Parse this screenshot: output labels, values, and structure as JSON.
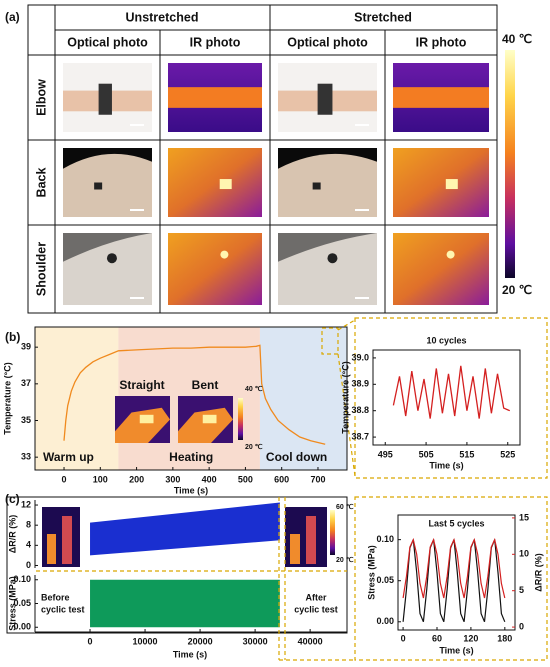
{
  "panel_labels": [
    "(a)",
    "(b)",
    "(c)"
  ],
  "panel_a": {
    "groups": [
      "Unstretched",
      "Stretched"
    ],
    "columns": [
      "Optical photo",
      "IR photo",
      "Optical photo",
      "IR photo"
    ],
    "rows": [
      "Elbow",
      "Back",
      "Shoulder"
    ],
    "colorbar": {
      "max_label": "40 ℃",
      "min_label": "20 ℃"
    }
  },
  "chart_data": [
    {
      "type": "line",
      "ylabel": "Temperature (°C)",
      "xlabel": "Time (s)",
      "xlim": [
        -80,
        780
      ],
      "xticks": [
        0,
        100,
        200,
        300,
        400,
        500,
        600,
        700
      ],
      "ylim": [
        32.3,
        40.1
      ],
      "yticks": [
        33,
        35,
        37,
        39
      ],
      "regions": {
        "labels": [
          "Warm up",
          "Heating",
          "Cool down"
        ],
        "boundaries": [
          150,
          540
        ],
        "colors": [
          "#fdefd3",
          "#f8dccf",
          "#dbe6f3"
        ]
      },
      "inset_labels": [
        "Straight",
        "Bent"
      ],
      "colorbar": {
        "max_label": "40 ℃",
        "min_label": "20 ℃"
      },
      "color": "#f08a1e",
      "x": [
        0,
        5,
        10,
        20,
        30,
        45,
        60,
        80,
        100,
        125,
        150,
        200,
        250,
        300,
        350,
        400,
        450,
        500,
        530,
        540,
        545,
        555,
        570,
        590,
        620,
        650,
        680,
        720
      ],
      "values": [
        33.9,
        35.0,
        35.8,
        36.6,
        37.1,
        37.6,
        37.9,
        38.2,
        38.4,
        38.6,
        38.8,
        38.85,
        38.9,
        38.95,
        38.95,
        39.0,
        39.0,
        39.0,
        39.05,
        39.1,
        37.0,
        36.2,
        35.6,
        35.0,
        34.5,
        34.1,
        33.9,
        33.7
      ]
    },
    {
      "type": "line",
      "title": "10 cycles",
      "ylabel": "Temperature (°C)",
      "xlabel": "Time (s)",
      "xlim": [
        492,
        528
      ],
      "xticks": [
        495,
        505,
        515,
        525
      ],
      "ylim": [
        38.67,
        39.03
      ],
      "yticks": [
        38.7,
        38.8,
        38.9,
        {
          "value": 39,
          "label": "39.0"
        }
      ],
      "color": "#d42020",
      "x": [
        497,
        498.5,
        500,
        501.5,
        503,
        504.5,
        506,
        507.5,
        509,
        510.5,
        512,
        513.5,
        515,
        516.5,
        518,
        519.5,
        521,
        522.5,
        524,
        525.5
      ],
      "values": [
        38.82,
        38.93,
        38.78,
        38.95,
        38.8,
        38.92,
        38.77,
        38.96,
        38.79,
        38.94,
        38.78,
        38.97,
        38.8,
        38.93,
        38.77,
        38.96,
        38.79,
        38.94,
        38.81,
        38.8
      ]
    },
    {
      "type": "band",
      "xlabel": "Time (s)",
      "xlim": [
        -10000,
        46700
      ],
      "xticks": [
        0,
        10000,
        20000,
        30000,
        40000
      ],
      "top": {
        "ylabel": "ΔR/R (%)",
        "ylim": [
          -0.5,
          13
        ],
        "yticks": [
          0,
          4,
          8,
          12
        ],
        "color": "#1a2fd0",
        "x": [
          0,
          34500
        ],
        "low": [
          2,
          5
        ],
        "high": [
          8.5,
          12.5
        ]
      },
      "bottom": {
        "ylabel": "Stress (MPa)",
        "ylim": [
          -0.01,
          0.11
        ],
        "yticks": [
          {
            "value": 0,
            "label": "0.00"
          },
          {
            "value": 0.05,
            "label": "0.05"
          },
          {
            "value": 0.1,
            "label": "0.10"
          }
        ],
        "color": "#0e9a5a",
        "x": [
          0,
          34500
        ],
        "low": [
          0,
          0
        ],
        "high": [
          0.1,
          0.1
        ]
      },
      "before_text": [
        "Before",
        "cyclic test"
      ],
      "after_text": [
        "After",
        "cyclic test"
      ],
      "colorbar": {
        "max_label": "60 ℃",
        "min_label": "20 ℃"
      }
    },
    {
      "type": "dual_line",
      "title": "Last 5 cycles",
      "xlabel": "Time (s)",
      "xlim": [
        -9,
        198
      ],
      "xticks": [
        0,
        60,
        120,
        180
      ],
      "ylim": [
        -0.01,
        0.13
      ],
      "yticks": [
        {
          "value": 0,
          "label": "0.00"
        },
        {
          "value": 0.05,
          "label": "0.05"
        },
        {
          "value": 0.1,
          "label": "0.10"
        }
      ],
      "y2lim": [
        -0.4,
        15.4
      ],
      "y2ticks": [
        0,
        5,
        10,
        15
      ],
      "x": [
        0,
        6,
        12,
        18,
        24,
        30,
        36,
        42,
        48,
        54,
        60,
        66,
        72,
        78,
        84,
        90,
        96,
        102,
        108,
        114,
        120,
        126,
        132,
        138,
        144,
        150,
        156,
        162,
        168,
        174,
        180
      ],
      "series": [
        {
          "name": "Stress (MPa)",
          "color": "#111111",
          "values": [
            0,
            0.04,
            0.09,
            0.1,
            0.06,
            0.01,
            0,
            0.04,
            0.09,
            0.1,
            0.06,
            0.01,
            0,
            0.04,
            0.09,
            0.1,
            0.06,
            0.01,
            0,
            0.04,
            0.09,
            0.1,
            0.06,
            0.01,
            0,
            0.04,
            0.09,
            0.1,
            0.06,
            0.01,
            0
          ]
        },
        {
          "name": "ΔR/R (%)",
          "color": "#d42020",
          "axis": "y2",
          "values": [
            4,
            7,
            11,
            12,
            10,
            6,
            4,
            7,
            11,
            12,
            10,
            6,
            4,
            7,
            11,
            12,
            10,
            6,
            4,
            7,
            11,
            12,
            10,
            6,
            4,
            7,
            11,
            12,
            10,
            6,
            4
          ]
        }
      ]
    }
  ]
}
